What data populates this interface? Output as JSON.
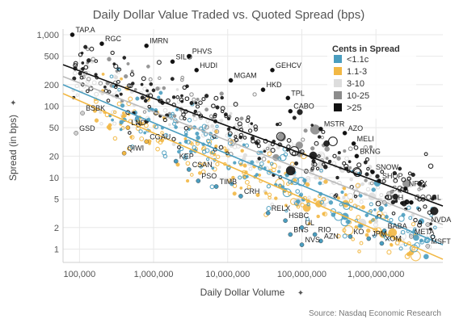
{
  "chart_data": {
    "type": "scatter",
    "title": "Daily Dollar Value Traded vs. Quoted Spread (bps)",
    "xlabel": "Daily Dollar Volume",
    "ylabel": "Spread (in bps)",
    "pin_icon": "pin-icon",
    "x_scale": "log",
    "y_scale": "log",
    "xlim": [
      60000,
      8000000000
    ],
    "ylim": [
      0.65,
      1200
    ],
    "x_ticks": [
      {
        "value": 100000,
        "label": "100,000"
      },
      {
        "value": 1000000,
        "label": "1,000,000"
      },
      {
        "value": 10000000,
        "label": "10,000,000"
      },
      {
        "value": 100000000,
        "label": "100,000,000"
      },
      {
        "value": 1000000000,
        "label": "1,000,000,000"
      }
    ],
    "y_ticks": [
      {
        "value": 1000,
        "label": "1,000"
      },
      {
        "value": 500,
        "label": "500"
      },
      {
        "value": 200,
        "label": "200"
      },
      {
        "value": 100,
        "label": "100"
      },
      {
        "value": 50,
        "label": "50"
      },
      {
        "value": 20,
        "label": "20"
      },
      {
        "value": 10,
        "label": "10"
      },
      {
        "value": 5,
        "label": "5"
      },
      {
        "value": 2,
        "label": "2"
      },
      {
        "value": 1,
        "label": "1"
      }
    ],
    "grid": true,
    "legend": {
      "title": "Cents in Spread",
      "placement": "top-right",
      "items": [
        {
          "label": "<1.1c",
          "color": "#4a9dbf"
        },
        {
          "label": "1.1-3",
          "color": "#f2b844"
        },
        {
          "label": "3-10",
          "color": "#dddddd"
        },
        {
          "label": "10-25",
          "color": "#8c8c8c"
        },
        {
          "label": ">25",
          "color": "#111111"
        }
      ]
    },
    "trend_lines": [
      {
        "category": ">25",
        "color": "#111111",
        "from": [
          60000,
          380
        ],
        "to": [
          8000000000,
          4.0
        ]
      },
      {
        "category": "3-10",
        "color": "#bbbbbb",
        "from": [
          60000,
          260
        ],
        "to": [
          8000000000,
          2.2
        ]
      },
      {
        "category": "<1.1c",
        "color": "#4a9dbf",
        "from": [
          60000,
          200
        ],
        "to": [
          8000000000,
          1.15
        ]
      },
      {
        "category": "1.1-3",
        "color": "#f2b844",
        "from": [
          60000,
          150
        ],
        "to": [
          8000000000,
          0.72
        ]
      }
    ],
    "labeled_points": [
      {
        "label": "TAP.A",
        "x": 80000,
        "y": 1000,
        "category": ">25"
      },
      {
        "label": "RGC",
        "x": 200000,
        "y": 750,
        "category": ">25"
      },
      {
        "label": "IMRN",
        "x": 800000,
        "y": 700,
        "category": ">25"
      },
      {
        "label": "SILO",
        "x": 1800000,
        "y": 420,
        "category": ">25"
      },
      {
        "label": "PHVS",
        "x": 3000000,
        "y": 500,
        "category": ">25"
      },
      {
        "label": "HUDI",
        "x": 3800000,
        "y": 320,
        "category": ">25"
      },
      {
        "label": "MGAM",
        "x": 11000000,
        "y": 230,
        "category": ">25"
      },
      {
        "label": "GEHCV",
        "x": 40000000,
        "y": 320,
        "category": ">25"
      },
      {
        "label": "HKD",
        "x": 30000000,
        "y": 170,
        "category": ">25"
      },
      {
        "label": "TPL",
        "x": 65000000,
        "y": 130,
        "category": ">25"
      },
      {
        "label": "CABO",
        "x": 70000000,
        "y": 85,
        "category": ">25"
      },
      {
        "label": "MSTR",
        "x": 180000000,
        "y": 48,
        "category": ">25"
      },
      {
        "label": "AZO",
        "x": 380000000,
        "y": 42,
        "category": ">25"
      },
      {
        "label": "MELI",
        "x": 500000000,
        "y": 30,
        "category": ">25"
      },
      {
        "label": "BKNG",
        "x": 550000000,
        "y": 20,
        "category": ">25"
      },
      {
        "label": "SNOW",
        "x": 900000000,
        "y": 12,
        "category": ">25"
      },
      {
        "label": "SHOP",
        "x": 1100000000,
        "y": 9,
        "category": ">25"
      },
      {
        "label": "SQ",
        "x": 1500000000,
        "y": 6,
        "category": "3-10"
      },
      {
        "label": "NFLX",
        "x": 2500000000,
        "y": 7,
        "category": ">25"
      },
      {
        "label": "UNH",
        "x": 1300000000,
        "y": 4.5,
        "category": "3-10"
      },
      {
        "label": "GOOGL",
        "x": 3000000000,
        "y": 4.5,
        "category": ">25"
      },
      {
        "label": "NVDA",
        "x": 5000000000,
        "y": 2.2,
        "category": "3-10"
      },
      {
        "label": "BABA",
        "x": 1300000000,
        "y": 1.8,
        "category": "<1.1c"
      },
      {
        "label": "META",
        "x": 3000000000,
        "y": 1.5,
        "category": "3-10"
      },
      {
        "label": "MSFT",
        "x": 5000000000,
        "y": 1.1,
        "category": "3-10"
      },
      {
        "label": "XOM",
        "x": 1200000000,
        "y": 1.2,
        "category": "<1.1c"
      },
      {
        "label": "JPM",
        "x": 800000000,
        "y": 1.4,
        "category": "<1.1c"
      },
      {
        "label": "KO",
        "x": 450000000,
        "y": 1.5,
        "category": "<1.1c"
      },
      {
        "label": "AZN",
        "x": 180000000,
        "y": 1.3,
        "category": "<1.1c"
      },
      {
        "label": "RIO",
        "x": 150000000,
        "y": 1.6,
        "category": "<1.1c"
      },
      {
        "label": "NVS",
        "x": 100000000,
        "y": 1.15,
        "category": "<1.1c"
      },
      {
        "label": "BNS",
        "x": 70000000,
        "y": 1.6,
        "category": "<1.1c"
      },
      {
        "label": "UL",
        "x": 100000000,
        "y": 2.0,
        "category": "<1.1c"
      },
      {
        "label": "HSBC",
        "x": 60000000,
        "y": 2.5,
        "category": "<1.1c"
      },
      {
        "label": "RELX",
        "x": 35000000,
        "y": 3.2,
        "category": "<1.1c"
      },
      {
        "label": "CRH",
        "x": 15000000,
        "y": 5.5,
        "category": "<1.1c"
      },
      {
        "label": "TIMB",
        "x": 7000000,
        "y": 7.5,
        "category": "<1.1c"
      },
      {
        "label": "PSO",
        "x": 4000000,
        "y": 9,
        "category": "<1.1c"
      },
      {
        "label": "CSAN",
        "x": 3000000,
        "y": 13,
        "category": "<1.1c"
      },
      {
        "label": "KEP",
        "x": 2000000,
        "y": 17,
        "category": "<1.1c"
      },
      {
        "label": "CGAU",
        "x": 800000,
        "y": 32,
        "category": "1.1-3"
      },
      {
        "label": "LND",
        "x": 450000,
        "y": 50,
        "category": "1.1-3"
      },
      {
        "label": "QIWI",
        "x": 400000,
        "y": 22,
        "category": "1.1-3"
      },
      {
        "label": "GSD",
        "x": 90000,
        "y": 42,
        "category": "3-10"
      },
      {
        "label": "BSBK",
        "x": 110000,
        "y": 80,
        "category": "3-10"
      }
    ]
  },
  "source": "Source: Nasdaq Economic Research"
}
